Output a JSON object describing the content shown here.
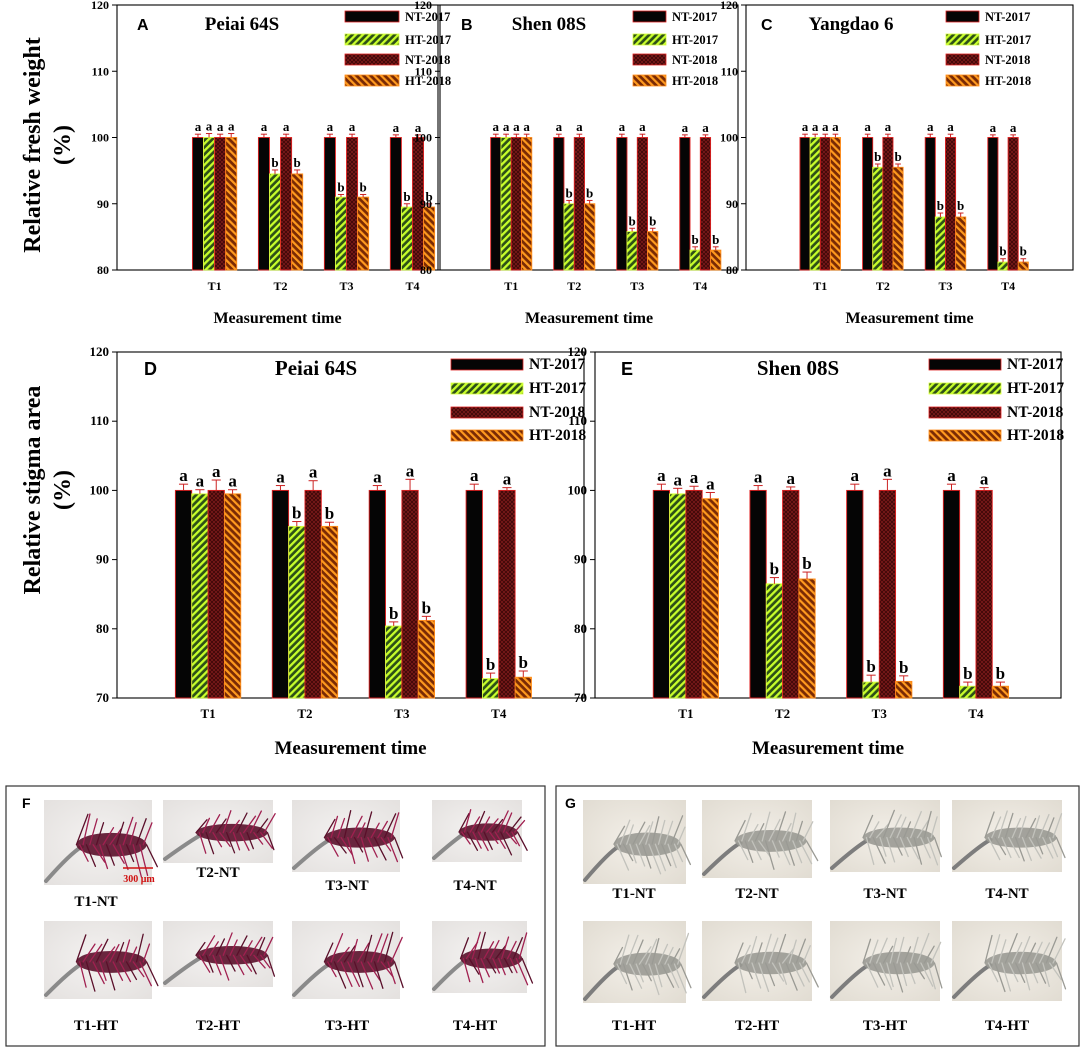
{
  "colors": {
    "nt2017": "#050505",
    "ht2017_bg": "#2d5017",
    "ht2017_line": "#c8ff2a",
    "nt2018_bg": "#3a0606",
    "nt2018_line": "#7a1a1a",
    "ht2018_bg": "#7a2a04",
    "ht2018_line": "#ff9a1e",
    "edge_red": "#e02020",
    "edge_yellow": "#d9ff40",
    "edge_orange": "#ff8c1a",
    "err": "#cc2222"
  },
  "ylabels": {
    "top_line1": "Relative fresh weight",
    "top_line2": "(%)",
    "bottom_line1": "Relative stigma area",
    "bottom_line2": "(%)"
  },
  "chart_data": [
    {
      "panel": "A",
      "title": "Peiai 64S",
      "type": "bar",
      "categories": [
        "T1",
        "T2",
        "T3",
        "T4"
      ],
      "xlabel": "Measurement time",
      "ylim": [
        80,
        120
      ],
      "yticks": [
        80,
        90,
        100,
        110,
        120
      ],
      "legend": [
        "NT-2017",
        "HT-2017",
        "NT-2018",
        "HT-2018"
      ],
      "series": [
        {
          "name": "NT-2017",
          "values": [
            100,
            100,
            100,
            100
          ],
          "err": [
            0.5,
            0.5,
            0.5,
            0.4
          ],
          "letters": [
            "a",
            "a",
            "a",
            "a"
          ]
        },
        {
          "name": "HT-2017",
          "values": [
            100,
            94.5,
            91,
            89.5
          ],
          "err": [
            0.6,
            0.6,
            0.4,
            0.5
          ],
          "letters": [
            "a",
            "b",
            "b",
            "b"
          ]
        },
        {
          "name": "NT-2018",
          "values": [
            100,
            100,
            100,
            100
          ],
          "err": [
            0.5,
            0.5,
            0.5,
            0.4
          ],
          "letters": [
            "a",
            "a",
            "a",
            "a"
          ]
        },
        {
          "name": "HT-2018",
          "values": [
            100,
            94.5,
            91,
            89.5
          ],
          "err": [
            0.6,
            0.6,
            0.4,
            0.5
          ],
          "letters": [
            "a",
            "b",
            "b",
            "b"
          ]
        }
      ]
    },
    {
      "panel": "B",
      "title": "Shen 08S",
      "type": "bar",
      "categories": [
        "T1",
        "T2",
        "T3",
        "T4"
      ],
      "xlabel": "Measurement time",
      "ylim": [
        80,
        120
      ],
      "yticks": [
        80,
        90,
        100,
        110,
        120
      ],
      "legend": [
        "NT-2017",
        "HT-2017",
        "NT-2018",
        "HT-2018"
      ],
      "series": [
        {
          "name": "NT-2017",
          "values": [
            100,
            100,
            100,
            100
          ],
          "err": [
            0.5,
            0.5,
            0.5,
            0.4
          ],
          "letters": [
            "a",
            "a",
            "a",
            "a"
          ]
        },
        {
          "name": "HT-2017",
          "values": [
            100,
            90,
            85.8,
            83
          ],
          "err": [
            0.5,
            0.5,
            0.5,
            0.5
          ],
          "letters": [
            "a",
            "b",
            "b",
            "b"
          ]
        },
        {
          "name": "NT-2018",
          "values": [
            100,
            100,
            100,
            100
          ],
          "err": [
            0.5,
            0.5,
            0.5,
            0.4
          ],
          "letters": [
            "a",
            "a",
            "a",
            "a"
          ]
        },
        {
          "name": "HT-2018",
          "values": [
            100,
            90,
            85.8,
            83
          ],
          "err": [
            0.5,
            0.5,
            0.5,
            0.5
          ],
          "letters": [
            "a",
            "b",
            "b",
            "b"
          ]
        }
      ]
    },
    {
      "panel": "C",
      "title": "Yangdao 6",
      "type": "bar",
      "categories": [
        "T1",
        "T2",
        "T3",
        "T4"
      ],
      "xlabel": "Measurement time",
      "ylim": [
        80,
        120
      ],
      "yticks": [
        80,
        90,
        100,
        110,
        120
      ],
      "legend": [
        "NT-2017",
        "HT-2017",
        "NT-2018",
        "HT-2018"
      ],
      "series": [
        {
          "name": "NT-2017",
          "values": [
            100,
            100,
            100,
            100
          ],
          "err": [
            0.5,
            0.5,
            0.5,
            0.4
          ],
          "letters": [
            "a",
            "a",
            "a",
            "a"
          ]
        },
        {
          "name": "HT-2017",
          "values": [
            100,
            95.5,
            88,
            81.2
          ],
          "err": [
            0.5,
            0.5,
            0.6,
            0.5
          ],
          "letters": [
            "a",
            "b",
            "b",
            "b"
          ]
        },
        {
          "name": "NT-2018",
          "values": [
            100,
            100,
            100,
            100
          ],
          "err": [
            0.5,
            0.5,
            0.5,
            0.4
          ],
          "letters": [
            "a",
            "a",
            "a",
            "a"
          ]
        },
        {
          "name": "HT-2018",
          "values": [
            100,
            95.5,
            88,
            81.2
          ],
          "err": [
            0.5,
            0.5,
            0.6,
            0.5
          ],
          "letters": [
            "a",
            "b",
            "b",
            "b"
          ]
        }
      ]
    },
    {
      "panel": "D",
      "title": "Peiai 64S",
      "type": "bar",
      "categories": [
        "T1",
        "T2",
        "T3",
        "T4"
      ],
      "xlabel": "Measurement time",
      "ylim": [
        70,
        120
      ],
      "yticks": [
        70,
        80,
        90,
        100,
        110,
        120
      ],
      "legend": [
        "NT-2017",
        "HT-2017",
        "NT-2018",
        "HT-2018"
      ],
      "series": [
        {
          "name": "NT-2017",
          "values": [
            100,
            100,
            100,
            100
          ],
          "err": [
            0.9,
            0.7,
            0.7,
            0.9
          ],
          "letters": [
            "a",
            "a",
            "a",
            "a"
          ]
        },
        {
          "name": "HT-2017",
          "values": [
            99.5,
            94.8,
            80.4,
            72.8
          ],
          "err": [
            0.6,
            0.7,
            0.6,
            0.8
          ],
          "letters": [
            "a",
            "b",
            "b",
            "b"
          ]
        },
        {
          "name": "NT-2018",
          "values": [
            100,
            100,
            100,
            100
          ],
          "err": [
            1.5,
            1.4,
            1.6,
            0.4
          ],
          "letters": [
            "a",
            "a",
            "a",
            "a"
          ]
        },
        {
          "name": "HT-2018",
          "values": [
            99.5,
            94.8,
            81.2,
            73
          ],
          "err": [
            0.6,
            0.6,
            0.6,
            0.9
          ],
          "letters": [
            "a",
            "b",
            "b",
            "b"
          ]
        }
      ]
    },
    {
      "panel": "E",
      "title": "Shen 08S",
      "type": "bar",
      "categories": [
        "T1",
        "T2",
        "T3",
        "T4"
      ],
      "xlabel": "Measurement time",
      "ylim": [
        70,
        120
      ],
      "yticks": [
        70,
        80,
        90,
        100,
        110,
        120
      ],
      "legend": [
        "NT-2017",
        "HT-2017",
        "NT-2018",
        "HT-2018"
      ],
      "series": [
        {
          "name": "NT-2017",
          "values": [
            100,
            100,
            100,
            100
          ],
          "err": [
            0.9,
            0.7,
            0.9,
            0.9
          ],
          "letters": [
            "a",
            "a",
            "a",
            "a"
          ]
        },
        {
          "name": "HT-2017",
          "values": [
            99.5,
            86.5,
            72.3,
            71.7
          ],
          "err": [
            0.8,
            0.9,
            1.0,
            0.6
          ],
          "letters": [
            "a",
            "b",
            "b",
            "b"
          ]
        },
        {
          "name": "NT-2018",
          "values": [
            100,
            100,
            100,
            100
          ],
          "err": [
            0.6,
            0.5,
            1.6,
            0.4
          ],
          "letters": [
            "a",
            "a",
            "a",
            "a"
          ]
        },
        {
          "name": "HT-2018",
          "values": [
            98.8,
            87.2,
            72.4,
            71.7
          ],
          "err": [
            0.9,
            1.0,
            0.8,
            0.6
          ],
          "letters": [
            "a",
            "b",
            "b",
            "b"
          ]
        }
      ]
    }
  ],
  "photos": [
    {
      "panel": "F",
      "scale_bar": "300 μm",
      "stain": "red",
      "labels": [
        "T1-NT",
        "T2-NT",
        "T3-NT",
        "T4-NT",
        "T1-HT",
        "T2-HT",
        "T3-HT",
        "T4-HT"
      ]
    },
    {
      "panel": "G",
      "stain": "grey",
      "labels": [
        "T1-NT",
        "T2-NT",
        "T3-NT",
        "T4-NT",
        "T1-HT",
        "T2-HT",
        "T3-HT",
        "T4-HT"
      ]
    }
  ]
}
